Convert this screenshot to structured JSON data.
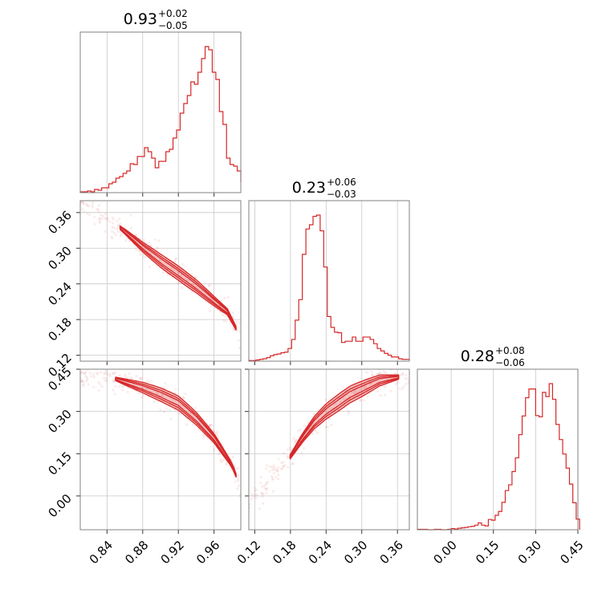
{
  "chart_data": {
    "type": "corner",
    "color": "#d62728",
    "parameters": [
      {
        "name": "",
        "median_title": {
          "value": "0.93",
          "plus": "+0.02",
          "minus": "−0.05"
        },
        "range": [
          0.81,
          0.99
        ],
        "ticks": [
          0.84,
          0.88,
          0.92,
          0.96
        ],
        "tick_labels": [
          "0.84",
          "0.88",
          "0.92",
          "0.96"
        ],
        "hist": {
          "bins": [
            0.81,
            0.814,
            0.818,
            0.822,
            0.826,
            0.83,
            0.834,
            0.838,
            0.842,
            0.846,
            0.85,
            0.854,
            0.858,
            0.862,
            0.866,
            0.87,
            0.874,
            0.878,
            0.882,
            0.886,
            0.89,
            0.894,
            0.898,
            0.902,
            0.906,
            0.91,
            0.914,
            0.918,
            0.922,
            0.926,
            0.93,
            0.934,
            0.938,
            0.942,
            0.946,
            0.95,
            0.954,
            0.958,
            0.962,
            0.966,
            0.97,
            0.974,
            0.978,
            0.982,
            0.986,
            0.99
          ],
          "counts": [
            1,
            1,
            2,
            1,
            4,
            3,
            6,
            6,
            11,
            13,
            18,
            20,
            24,
            27,
            36,
            35,
            45,
            45,
            56,
            51,
            43,
            31,
            39,
            39,
            51,
            54,
            68,
            78,
            99,
            111,
            121,
            138,
            135,
            150,
            167,
            182,
            178,
            150,
            141,
            101,
            85,
            43,
            35,
            33,
            27,
            13
          ]
        }
      },
      {
        "name": "",
        "median_title": {
          "value": "0.23",
          "plus": "+0.06",
          "minus": "−0.03"
        },
        "range": [
          0.11,
          0.38
        ],
        "ticks": [
          0.12,
          0.18,
          0.24,
          0.3,
          0.36
        ],
        "tick_labels": [
          "0.12",
          "0.18",
          "0.24",
          "0.30",
          "0.36"
        ],
        "hist": {
          "bins": [
            0.11,
            0.116,
            0.122,
            0.128,
            0.134,
            0.14,
            0.146,
            0.152,
            0.158,
            0.164,
            0.17,
            0.176,
            0.182,
            0.188,
            0.194,
            0.2,
            0.206,
            0.212,
            0.218,
            0.224,
            0.23,
            0.236,
            0.242,
            0.248,
            0.254,
            0.26,
            0.266,
            0.272,
            0.278,
            0.284,
            0.29,
            0.296,
            0.302,
            0.308,
            0.314,
            0.32,
            0.326,
            0.332,
            0.338,
            0.344,
            0.35,
            0.356,
            0.362,
            0.368,
            0.374,
            0.38
          ],
          "counts": [
            1,
            1,
            2,
            3,
            4,
            6,
            9,
            11,
            12,
            14,
            15,
            21,
            36,
            68,
            102,
            177,
            219,
            226,
            240,
            242,
            216,
            156,
            74,
            56,
            48,
            47,
            31,
            33,
            33,
            40,
            33,
            33,
            40,
            40,
            36,
            29,
            21,
            17,
            13,
            10,
            7,
            7,
            4,
            3,
            3,
            4
          ]
        }
      },
      {
        "name": "",
        "median_title": {
          "value": "0.28",
          "plus": "+0.08",
          "minus": "−0.06"
        },
        "range": [
          -0.12,
          0.45
        ],
        "ticks": [
          0.0,
          0.15,
          0.3,
          0.45
        ],
        "tick_labels": [
          "0.00",
          "0.15",
          "0.30",
          "0.45"
        ],
        "hist": {
          "bins": [
            -0.12,
            -0.108,
            -0.096,
            -0.084,
            -0.072,
            -0.06,
            -0.048,
            -0.036,
            -0.024,
            -0.012,
            0.0,
            0.012,
            0.024,
            0.036,
            0.048,
            0.06,
            0.072,
            0.084,
            0.096,
            0.108,
            0.12,
            0.132,
            0.144,
            0.156,
            0.168,
            0.18,
            0.192,
            0.204,
            0.216,
            0.228,
            0.24,
            0.252,
            0.264,
            0.276,
            0.288,
            0.3,
            0.312,
            0.324,
            0.336,
            0.348,
            0.36,
            0.372,
            0.384,
            0.396,
            0.408,
            0.42,
            0.432,
            0.444,
            0.456
          ],
          "counts": [
            1,
            1,
            1,
            0,
            0,
            1,
            1,
            0,
            0,
            1,
            3,
            2,
            4,
            5,
            6,
            8,
            9,
            12,
            18,
            12,
            10,
            27,
            25,
            38,
            48,
            72,
            103,
            118,
            153,
            189,
            250,
            299,
            347,
            370,
            370,
            300,
            297,
            361,
            350,
            384,
            343,
            277,
            237,
            199,
            162,
            120,
            71,
            28
          ]
        }
      }
    ],
    "pairs": [
      {
        "row": 1,
        "col": 0,
        "ridge": [
          [
            0.815,
            0.378
          ],
          [
            0.84,
            0.352
          ],
          [
            0.86,
            0.328
          ],
          [
            0.88,
            0.302
          ],
          [
            0.9,
            0.279
          ],
          [
            0.92,
            0.258
          ],
          [
            0.94,
            0.236
          ],
          [
            0.96,
            0.211
          ],
          [
            0.975,
            0.193
          ],
          [
            0.99,
            0.15
          ]
        ],
        "max_width": 0.012
      },
      {
        "row": 2,
        "col": 0,
        "ridge": [
          [
            0.81,
            0.435
          ],
          [
            0.84,
            0.425
          ],
          [
            0.86,
            0.405
          ],
          [
            0.88,
            0.385
          ],
          [
            0.9,
            0.36
          ],
          [
            0.92,
            0.33
          ],
          [
            0.94,
            0.275
          ],
          [
            0.96,
            0.205
          ],
          [
            0.98,
            0.11
          ],
          [
            0.99,
            0.03
          ]
        ],
        "max_width": 0.025
      },
      {
        "row": 2,
        "col": 1,
        "ridge": [
          [
            0.12,
            0.0
          ],
          [
            0.15,
            0.08
          ],
          [
            0.18,
            0.14
          ],
          [
            0.2,
            0.205
          ],
          [
            0.22,
            0.26
          ],
          [
            0.24,
            0.3
          ],
          [
            0.26,
            0.33
          ],
          [
            0.28,
            0.36
          ],
          [
            0.3,
            0.38
          ],
          [
            0.33,
            0.41
          ],
          [
            0.37,
            0.425
          ]
        ],
        "max_width": 0.03
      }
    ]
  }
}
